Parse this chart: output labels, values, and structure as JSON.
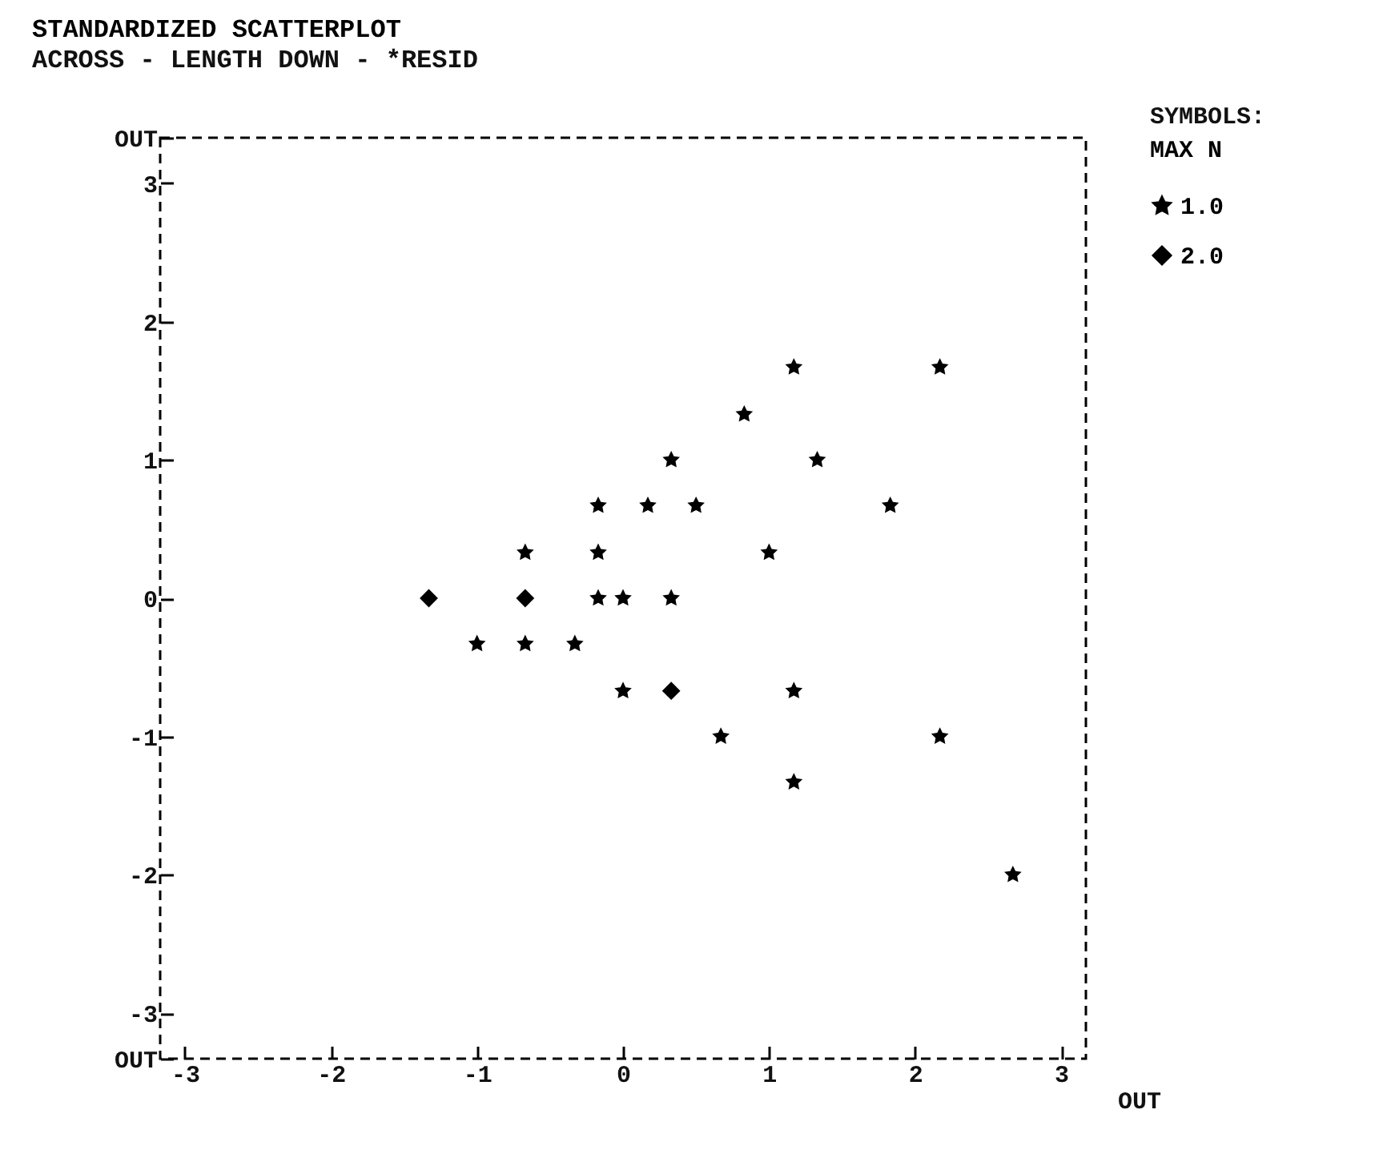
{
  "chart_data": {
    "type": "scatter",
    "title": "STANDARDIZED SCATTERPLOT",
    "subtitle": "ACROSS - LENGTH     DOWN - *RESID",
    "legend_title": "MAX N",
    "legend": "right",
    "grid": false,
    "annotations": [
      "SYMBOLS:",
      "OUT"
    ],
    "xlim": [
      -3.17,
      3.17
    ],
    "xticks": [
      -3,
      -2,
      -1,
      0,
      1,
      2,
      3
    ],
    "ylim": [
      -3.33,
      3.33
    ],
    "yticks": [
      {
        "value": -3.33,
        "label": "OUT"
      },
      -3,
      -2,
      -1,
      0,
      1,
      2,
      3,
      {
        "value": 3.33,
        "label": "OUT"
      }
    ],
    "series": [
      {
        "name": "1.0",
        "color": "#000000",
        "marker": "star",
        "x": [
          1.17,
          2.17,
          0.83,
          0.33,
          1.33,
          -0.17,
          0.17,
          0.5,
          1.83,
          -0.67,
          -0.17,
          1.0,
          -0.17,
          0,
          0.33,
          -1.0,
          -0.67,
          -0.33,
          0,
          1.17,
          0.67,
          2.17,
          1.17,
          2.67
        ],
        "values": [
          1.67,
          1.67,
          1.33,
          1,
          1,
          0.67,
          0.67,
          0.67,
          0.67,
          0.33,
          0.33,
          0.33,
          0,
          0,
          0,
          -0.33,
          -0.33,
          -0.33,
          -0.67,
          -0.67,
          -1,
          -1,
          -1.33,
          -2
        ]
      },
      {
        "name": "2.0",
        "color": "#000000",
        "marker": "diamond",
        "x": [
          -1.33,
          -0.67,
          0.33
        ],
        "values": [
          0,
          0,
          -0.67
        ]
      }
    ]
  }
}
